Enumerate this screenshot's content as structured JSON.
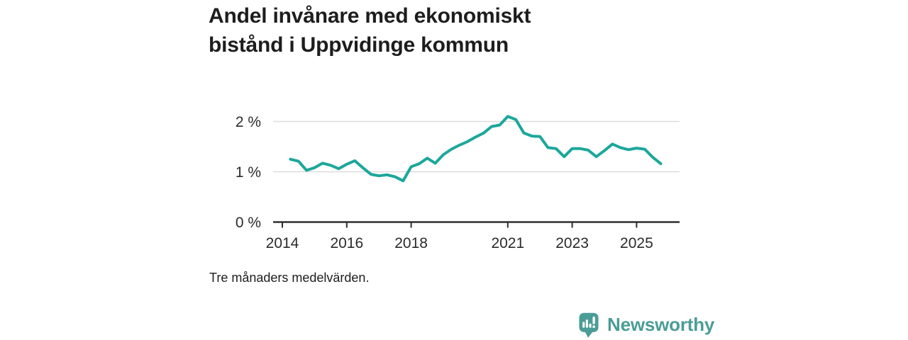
{
  "title": {
    "line1": "Andel invånare med ekonomiskt",
    "line2": "bistånd i Uppvidinge kommun"
  },
  "footnote": "Tre månaders medelvärden.",
  "branding": {
    "name": "Newsworthy",
    "logo_color": "#4a9d96"
  },
  "colors": {
    "line": "#1ca79b",
    "grid": "#dcdcdc",
    "axis": "#2e2e2e",
    "tick_text": "#2b2b2b"
  },
  "chart_data": {
    "type": "line",
    "title": "Andel invånare med ekonomiskt bistånd i Uppvidinge kommun",
    "note": "Tre månaders medelvärden.",
    "unit": "%",
    "interval": "quarterly (3-month averages)",
    "start_period": "2014 Q2",
    "end_period": "2025 Q4",
    "grid": "horizontal",
    "legend": "none",
    "xlim": [
      2013.7,
      2026.33
    ],
    "ylim": [
      0,
      2.45
    ],
    "x_ticks": [
      {
        "t": 2014,
        "label": "2014"
      },
      {
        "t": 2016,
        "label": "2016"
      },
      {
        "t": 2018,
        "label": "2018"
      },
      {
        "t": 2021,
        "label": "2021"
      },
      {
        "t": 2023,
        "label": "2023"
      },
      {
        "t": 2025,
        "label": "2025"
      }
    ],
    "y_ticks": [
      {
        "v": 0,
        "label": "0 %"
      },
      {
        "v": 1,
        "label": "1 %"
      },
      {
        "v": 2,
        "label": "2 %"
      }
    ],
    "x": [
      2014.25,
      2014.5,
      2014.75,
      2015.0,
      2015.25,
      2015.5,
      2015.75,
      2016.0,
      2016.25,
      2016.5,
      2016.75,
      2017.0,
      2017.25,
      2017.5,
      2017.75,
      2018.0,
      2018.25,
      2018.5,
      2018.75,
      2019.0,
      2019.25,
      2019.5,
      2019.75,
      2020.0,
      2020.25,
      2020.5,
      2020.75,
      2021.0,
      2021.25,
      2021.5,
      2021.75,
      2022.0,
      2022.25,
      2022.5,
      2022.75,
      2023.0,
      2023.25,
      2023.5,
      2023.75,
      2024.0,
      2024.25,
      2024.5,
      2024.75,
      2025.0,
      2025.25,
      2025.5,
      2025.75
    ],
    "series": [
      {
        "name": "Andel invånare med ekonomiskt bistånd (%)",
        "values": [
          1.25,
          1.21,
          1.03,
          1.08,
          1.17,
          1.13,
          1.06,
          1.15,
          1.22,
          1.08,
          0.95,
          0.92,
          0.94,
          0.9,
          0.82,
          1.1,
          1.16,
          1.27,
          1.17,
          1.34,
          1.45,
          1.53,
          1.6,
          1.69,
          1.77,
          1.9,
          1.93,
          2.1,
          2.04,
          1.77,
          1.71,
          1.7,
          1.48,
          1.46,
          1.3,
          1.46,
          1.46,
          1.43,
          1.3,
          1.42,
          1.55,
          1.48,
          1.44,
          1.47,
          1.45,
          1.29,
          1.16
        ]
      }
    ]
  }
}
